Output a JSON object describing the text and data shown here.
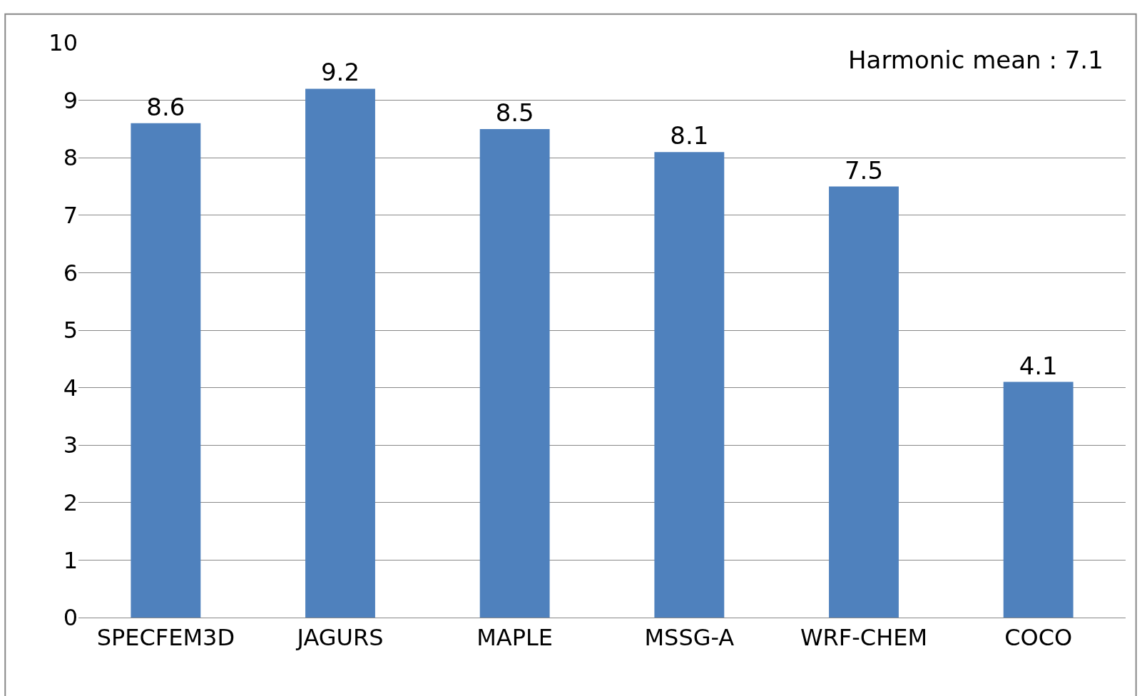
{
  "chart_data": {
    "type": "bar",
    "categories": [
      "SPECFEM3D",
      "JAGURS",
      "MAPLE",
      "MSSG-A",
      "WRF-CHEM",
      "COCO"
    ],
    "values": [
      8.6,
      9.2,
      8.5,
      8.1,
      7.5,
      4.1
    ],
    "color": "#4f81bd",
    "data_labels": true,
    "ylim": [
      0,
      10
    ],
    "yticks": [
      0,
      1,
      2,
      3,
      4,
      5,
      6,
      7,
      8,
      9,
      10
    ],
    "grid": "y",
    "legend": false,
    "annotations": [
      "Harmonic mean : 7.1"
    ]
  }
}
